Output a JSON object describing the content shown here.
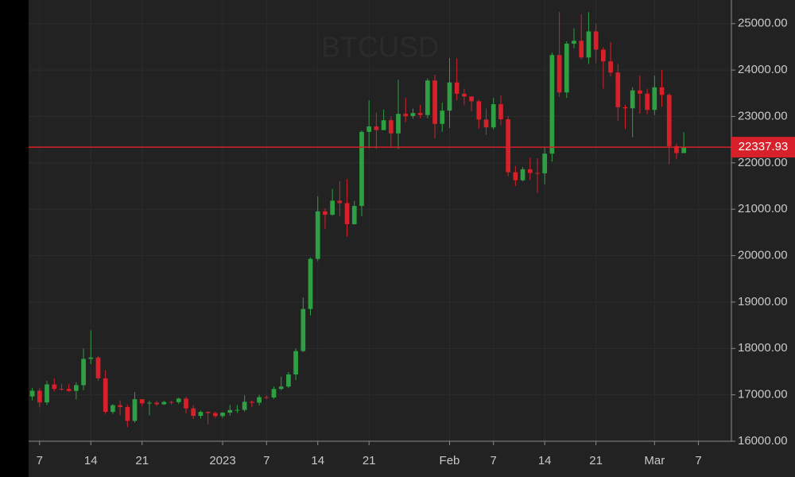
{
  "chart_data": {
    "type": "candlestick",
    "title": "BTCUSD",
    "categories": [
      null,
      "7",
      null,
      null,
      null,
      null,
      null,
      null,
      "14",
      null,
      null,
      null,
      null,
      null,
      null,
      "21",
      null,
      null,
      null,
      null,
      null,
      null,
      null,
      null,
      null,
      null,
      "2023",
      null,
      null,
      null,
      null,
      null,
      "7",
      null,
      null,
      null,
      null,
      null,
      null,
      "14",
      null,
      null,
      null,
      null,
      null,
      null,
      "21",
      null,
      null,
      null,
      null,
      null,
      null,
      null,
      null,
      null,
      null,
      "Feb",
      null,
      null,
      null,
      null,
      null,
      "7",
      null,
      null,
      null,
      null,
      null,
      null,
      "14",
      null,
      null,
      null,
      null,
      null,
      null,
      "21",
      null,
      null,
      null,
      null,
      null,
      null,
      null,
      "Mar",
      null,
      null,
      null,
      null,
      null,
      "7",
      null,
      null,
      null,
      null
    ],
    "open": [
      16967,
      17089,
      16836,
      17224,
      17128,
      17127,
      17085,
      17209,
      17775,
      17804,
      17356,
      16632,
      16776,
      16738,
      16439,
      16906,
      16817,
      16830,
      16796,
      16847,
      16842,
      16919,
      16707,
      16547,
      16633,
      16607,
      16542,
      16616,
      16672,
      16675,
      16850,
      16831,
      16950,
      16943,
      17127,
      17178,
      17440,
      17943,
      18851,
      19930,
      20955,
      20882,
      21184,
      21132,
      20677,
      21071,
      22667,
      22784,
      22707,
      22919,
      22635,
      23056,
      23009,
      23075,
      23031,
      23775,
      22840,
      23126,
      23733,
      23489,
      23431,
      23327,
      22933,
      22764,
      23264,
      22939,
      21797,
      21625,
      21862,
      21783,
      21773,
      22199,
      24324,
      23517,
      24569,
      24631,
      24271,
      24834,
      24439,
      24188,
      23947,
      23198,
      23175,
      23562,
      23492,
      23141,
      23628,
      23465,
      22360,
      22210,
      null,
      null,
      null,
      null,
      null,
      null
    ],
    "high": [
      17150,
      17140,
      17300,
      17360,
      17230,
      17240,
      17270,
      18000,
      18390,
      17840,
      17530,
      16800,
      16880,
      16790,
      17060,
      16900,
      16870,
      16870,
      16870,
      16870,
      16940,
      16960,
      16780,
      16660,
      16640,
      16640,
      16630,
      16780,
      16780,
      16990,
      16880,
      17000,
      16990,
      17180,
      17390,
      17490,
      18000,
      19100,
      19960,
      21280,
      21020,
      21440,
      21610,
      21650,
      21180,
      22700,
      23350,
      23080,
      23150,
      23000,
      23790,
      23400,
      23170,
      23250,
      23820,
      23900,
      23300,
      24260,
      24250,
      23600,
      23440,
      23360,
      23170,
      23400,
      23460,
      23010,
      21930,
      21910,
      22110,
      22100,
      22330,
      24380,
      25250,
      24620,
      24900,
      25200,
      25250,
      25000,
      24490,
      24600,
      24130,
      23250,
      23630,
      23880,
      23600,
      23880,
      24000,
      23500,
      22420,
      22660,
      null,
      null,
      null,
      null,
      null,
      null
    ],
    "low": [
      16880,
      16730,
      16780,
      17070,
      17090,
      17060,
      16900,
      17100,
      17660,
      17300,
      16590,
      16590,
      16560,
      16300,
      16400,
      16760,
      16560,
      16760,
      16780,
      16790,
      16800,
      16600,
      16480,
      16490,
      16360,
      16500,
      16500,
      16550,
      16610,
      16640,
      16740,
      16770,
      16910,
      16910,
      17100,
      17150,
      17320,
      17920,
      18710,
      19880,
      20580,
      20860,
      20850,
      20410,
      20670,
      20850,
      22320,
      22300,
      22700,
      22320,
      22300,
      22880,
      22950,
      22960,
      22960,
      22530,
      22670,
      22750,
      23350,
      23240,
      23110,
      22740,
      22600,
      22720,
      22810,
      21710,
      21500,
      21600,
      21630,
      21350,
      21540,
      22030,
      23420,
      23400,
      24470,
      24230,
      24130,
      24150,
      23600,
      23860,
      22900,
      22730,
      22550,
      23060,
      23050,
      23030,
      23210,
      21970,
      22080,
      22230,
      null,
      null,
      null,
      null,
      null,
      null
    ],
    "close": [
      17089,
      16836,
      17224,
      17128,
      17127,
      17085,
      17209,
      17775,
      17804,
      17356,
      16632,
      16776,
      16738,
      16439,
      16906,
      16817,
      16830,
      16796,
      16847,
      16842,
      16919,
      16707,
      16547,
      16633,
      16607,
      16542,
      16616,
      16672,
      16675,
      16850,
      16831,
      16950,
      16943,
      17127,
      17178,
      17440,
      17943,
      18851,
      19930,
      20955,
      20882,
      21184,
      21132,
      20677,
      21071,
      22667,
      22784,
      22707,
      22919,
      22635,
      23056,
      23009,
      23075,
      23031,
      23775,
      22840,
      23126,
      23733,
      23489,
      23431,
      23327,
      22933,
      22764,
      23264,
      22939,
      21797,
      21625,
      21862,
      21783,
      21773,
      22199,
      24324,
      23517,
      24569,
      24631,
      24271,
      24834,
      24439,
      24188,
      23947,
      23198,
      23175,
      23562,
      23492,
      23141,
      23628,
      23465,
      22360,
      22210,
      22338,
      null,
      null,
      null,
      null,
      null,
      null
    ],
    "up_color": "#2ea043",
    "down_color": "#d8202a",
    "ylim": [
      16000,
      25510
    ],
    "yticks": [
      {
        "value": 16000,
        "label": "16000.00"
      },
      {
        "value": 17000,
        "label": "17000.00"
      },
      {
        "value": 18000,
        "label": "18000.00"
      },
      {
        "value": 19000,
        "label": "19000.00"
      },
      {
        "value": 20000,
        "label": "20000.00"
      },
      {
        "value": 21000,
        "label": "21000.00"
      },
      {
        "value": 22000,
        "label": "22000.00"
      },
      {
        "value": 23000,
        "label": "23000.00"
      },
      {
        "value": 24000,
        "label": "24000.00"
      },
      {
        "value": 25000,
        "label": "25000.00"
      }
    ],
    "last_price": {
      "value": 22337.93,
      "label": "22337.93"
    },
    "grid": true
  }
}
